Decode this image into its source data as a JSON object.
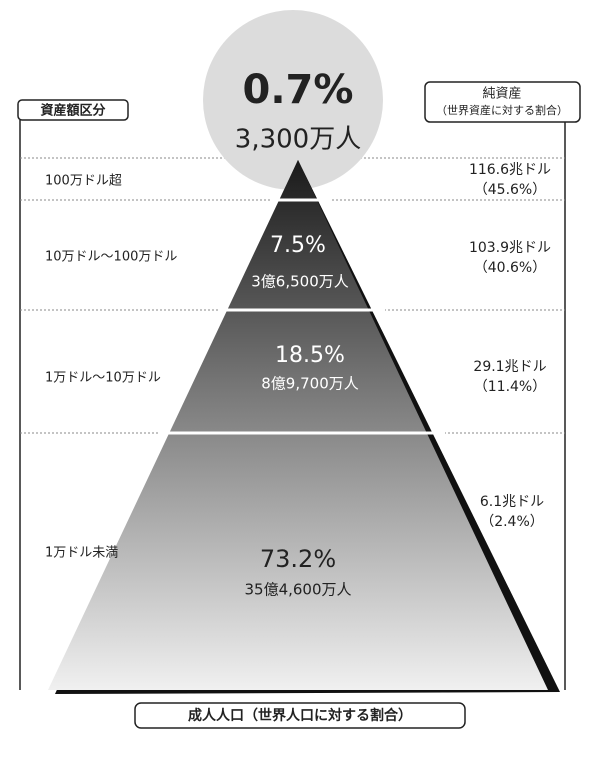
{
  "header": {
    "left_label": "資産額区分",
    "right_label": [
      "純資産",
      "（世界資産に対する割合）"
    ]
  },
  "top": {
    "percent": "0.7%",
    "population": "3,300万人"
  },
  "tiers": [
    {
      "range": "100万ドル超",
      "wealth": "116.6兆ドル",
      "wealth_share": "（45.6%）"
    },
    {
      "range": "10万ドル～100万ドル",
      "percent": "7.5%",
      "population": "3億6,500万人",
      "wealth": "103.9兆ドル",
      "wealth_share": "（40.6%）"
    },
    {
      "range": "1万ドル～10万ドル",
      "percent": "18.5%",
      "population": "8億9,700万人",
      "wealth": "29.1兆ドル",
      "wealth_share": "（11.4%）"
    },
    {
      "range": "1万ドル未満",
      "percent": "73.2%",
      "population": "35億4,600万人",
      "wealth": "6.1兆ドル",
      "wealth_share": "（2.4%）"
    }
  ],
  "footer": "成人人口（世界人口に対する割合）"
}
